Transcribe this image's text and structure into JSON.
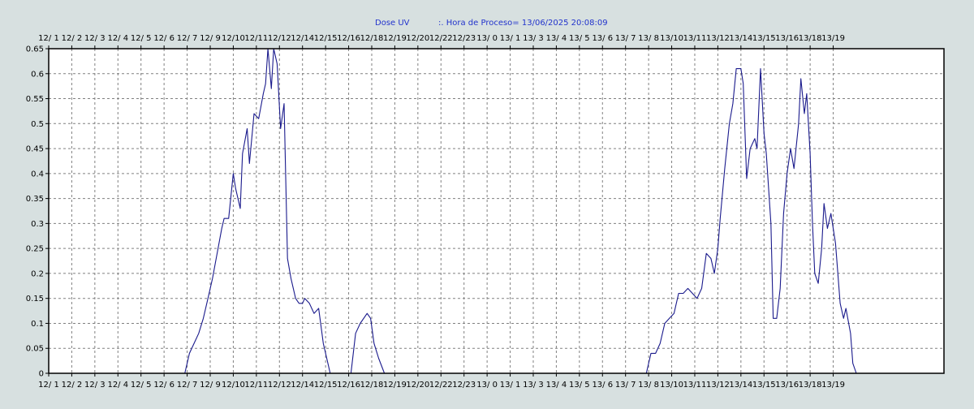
{
  "chart_data": {
    "type": "line",
    "title": "Dose UV",
    "subtitle": ":. Hora de Proceso= 13/06/2025 20:08:09",
    "xlabel": "",
    "ylabel": "",
    "ylim": [
      0,
      0.65
    ],
    "y_ticks": [
      "0",
      "0.05",
      "0.1",
      "0.15",
      "0.2",
      "0.25",
      "0.3",
      "0.35",
      "0.4",
      "0.45",
      "0.5",
      "0.55",
      "0.6",
      "0.65"
    ],
    "x_range": [
      0,
      38.8
    ],
    "x_ticks": [
      {
        "x": 0,
        "label": "12/ 1"
      },
      {
        "x": 1,
        "label": "12/ 2"
      },
      {
        "x": 2,
        "label": "12/ 3"
      },
      {
        "x": 3,
        "label": "12/ 4"
      },
      {
        "x": 4,
        "label": "12/ 5"
      },
      {
        "x": 5,
        "label": "12/ 6"
      },
      {
        "x": 6,
        "label": "12/ 7"
      },
      {
        "x": 7,
        "label": "12/ 9"
      },
      {
        "x": 8,
        "label": "12/10"
      },
      {
        "x": 9,
        "label": "12/11"
      },
      {
        "x": 10,
        "label": "12/12"
      },
      {
        "x": 11,
        "label": "12/14"
      },
      {
        "x": 12,
        "label": "12/15"
      },
      {
        "x": 13,
        "label": "12/16"
      },
      {
        "x": 14,
        "label": "12/18"
      },
      {
        "x": 15,
        "label": "12/19"
      },
      {
        "x": 16,
        "label": "12/20"
      },
      {
        "x": 17,
        "label": "12/22"
      },
      {
        "x": 18,
        "label": "12/23"
      },
      {
        "x": 19,
        "label": "13/ 0"
      },
      {
        "x": 20,
        "label": "13/ 1"
      },
      {
        "x": 21,
        "label": "13/ 3"
      },
      {
        "x": 22,
        "label": "13/ 4"
      },
      {
        "x": 23,
        "label": "13/ 5"
      },
      {
        "x": 24,
        "label": "13/ 6"
      },
      {
        "x": 25,
        "label": "13/ 7"
      },
      {
        "x": 26,
        "label": "13/ 8"
      },
      {
        "x": 27,
        "label": "13/10"
      },
      {
        "x": 28,
        "label": "13/11"
      },
      {
        "x": 29,
        "label": "13/12"
      },
      {
        "x": 30,
        "label": "13/14"
      },
      {
        "x": 31,
        "label": "13/15"
      },
      {
        "x": 32,
        "label": "13/16"
      },
      {
        "x": 33,
        "label": "13/18"
      },
      {
        "x": 34,
        "label": "13/19"
      }
    ],
    "grid": true,
    "colors": {
      "line": "#1a1a8c",
      "plot_bg": "#ffffff",
      "grid": "#808080",
      "title": "#2233cc",
      "page_bg": "#d7e0e0"
    },
    "series": [
      {
        "name": "",
        "points": [
          [
            5.9,
            0
          ],
          [
            6.1,
            0.04
          ],
          [
            6.3,
            0.06
          ],
          [
            6.5,
            0.08
          ],
          [
            6.7,
            0.11
          ],
          [
            6.9,
            0.15
          ],
          [
            7.1,
            0.19
          ],
          [
            7.3,
            0.24
          ],
          [
            7.5,
            0.29
          ],
          [
            7.6,
            0.31
          ],
          [
            7.8,
            0.31
          ],
          [
            8.0,
            0.4
          ],
          [
            8.1,
            0.37
          ],
          [
            8.3,
            0.33
          ],
          [
            8.4,
            0.44
          ],
          [
            8.6,
            0.49
          ],
          [
            8.7,
            0.42
          ],
          [
            8.9,
            0.52
          ],
          [
            9.1,
            0.51
          ],
          [
            9.3,
            0.56
          ],
          [
            9.4,
            0.58
          ],
          [
            9.5,
            0.65
          ],
          [
            9.65,
            0.57
          ],
          [
            9.75,
            0.65
          ],
          [
            9.9,
            0.62
          ],
          [
            10.05,
            0.49
          ],
          [
            10.2,
            0.54
          ],
          [
            10.35,
            0.23
          ],
          [
            10.5,
            0.19
          ],
          [
            10.7,
            0.15
          ],
          [
            10.85,
            0.14
          ],
          [
            11.0,
            0.14
          ],
          [
            11.1,
            0.15
          ],
          [
            11.3,
            0.14
          ],
          [
            11.5,
            0.12
          ],
          [
            11.7,
            0.13
          ],
          [
            11.9,
            0.06
          ],
          [
            12.1,
            0.02
          ],
          [
            12.2,
            0
          ],
          [
            13.1,
            0
          ],
          [
            13.3,
            0.08
          ],
          [
            13.5,
            0.1
          ],
          [
            13.8,
            0.12
          ],
          [
            13.95,
            0.11
          ],
          [
            14.1,
            0.06
          ],
          [
            14.3,
            0.03
          ],
          [
            14.55,
            0
          ],
          [
            25.9,
            0
          ],
          [
            26.1,
            0.04
          ],
          [
            26.3,
            0.04
          ],
          [
            26.5,
            0.06
          ],
          [
            26.7,
            0.1
          ],
          [
            26.9,
            0.11
          ],
          [
            27.1,
            0.12
          ],
          [
            27.3,
            0.16
          ],
          [
            27.5,
            0.16
          ],
          [
            27.7,
            0.17
          ],
          [
            27.9,
            0.16
          ],
          [
            28.1,
            0.15
          ],
          [
            28.3,
            0.17
          ],
          [
            28.5,
            0.24
          ],
          [
            28.7,
            0.23
          ],
          [
            28.85,
            0.2
          ],
          [
            29.0,
            0.25
          ],
          [
            29.1,
            0.31
          ],
          [
            29.3,
            0.41
          ],
          [
            29.5,
            0.5
          ],
          [
            29.65,
            0.54
          ],
          [
            29.8,
            0.61
          ],
          [
            30.0,
            0.61
          ],
          [
            30.1,
            0.58
          ],
          [
            30.25,
            0.39
          ],
          [
            30.4,
            0.45
          ],
          [
            30.6,
            0.47
          ],
          [
            30.7,
            0.45
          ],
          [
            30.85,
            0.61
          ],
          [
            31.0,
            0.48
          ],
          [
            31.1,
            0.44
          ],
          [
            31.3,
            0.3
          ],
          [
            31.4,
            0.11
          ],
          [
            31.55,
            0.11
          ],
          [
            31.7,
            0.17
          ],
          [
            31.85,
            0.32
          ],
          [
            32.0,
            0.4
          ],
          [
            32.15,
            0.45
          ],
          [
            32.3,
            0.41
          ],
          [
            32.5,
            0.5
          ],
          [
            32.6,
            0.59
          ],
          [
            32.75,
            0.52
          ],
          [
            32.85,
            0.56
          ],
          [
            33.0,
            0.44
          ],
          [
            33.1,
            0.3
          ],
          [
            33.2,
            0.2
          ],
          [
            33.35,
            0.18
          ],
          [
            33.5,
            0.25
          ],
          [
            33.6,
            0.34
          ],
          [
            33.75,
            0.29
          ],
          [
            33.9,
            0.32
          ],
          [
            34.1,
            0.26
          ],
          [
            34.3,
            0.14
          ],
          [
            34.45,
            0.11
          ],
          [
            34.55,
            0.13
          ],
          [
            34.75,
            0.08
          ],
          [
            34.85,
            0.02
          ],
          [
            35.0,
            0
          ]
        ]
      }
    ]
  }
}
